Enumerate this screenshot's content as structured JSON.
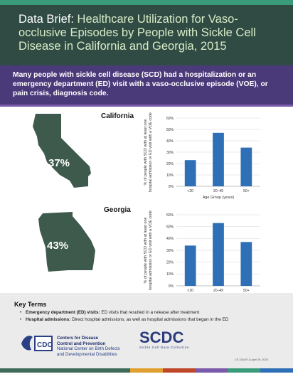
{
  "header": {
    "lead": "Data Brief:",
    "title": "Healthcare Utilization for Vaso-occlusive Episodes by People with Sickle Cell Disease in California and Georgia, 2015"
  },
  "banner": {
    "text": "Many people with sickle cell disease (SCD) had a hospitalization or an emergency department (ED) visit with a vaso-occlusive episode (VOE), or pain crisis, diagnosis code."
  },
  "states": [
    {
      "name": "California",
      "percent": "37%"
    },
    {
      "name": "Georgia",
      "percent": "43%"
    }
  ],
  "chart_data": [
    {
      "type": "bar",
      "title": "California",
      "categories": [
        "<20",
        "20–49",
        "50+"
      ],
      "values": [
        23,
        47,
        34
      ],
      "xlabel": "Age Group (years)",
      "ylabel": "% of people with SCD with at least one hospital admission or ED visit with a VOE code",
      "yticks": [
        "0%",
        "10%",
        "20%",
        "30%",
        "40%",
        "50%",
        "60%"
      ],
      "ylim": [
        0,
        60
      ],
      "color": "#2e6fb5"
    },
    {
      "type": "bar",
      "title": "Georgia",
      "categories": [
        "<20",
        "20–49",
        "50+"
      ],
      "values": [
        34,
        53,
        37
      ],
      "xlabel": "Age Group (years)",
      "ylabel": "% of people with SCD with at least one hospital admission or ED visit with a VOE code",
      "yticks": [
        "0%",
        "10%",
        "20%",
        "30%",
        "40%",
        "50%",
        "60%"
      ],
      "ylim": [
        0,
        60
      ],
      "color": "#2e6fb5"
    }
  ],
  "key_terms": {
    "title": "Key Terms",
    "items": [
      {
        "term": "Emergency department (ED) visits:",
        "definition": "ED visits that resulted in a release after treatment"
      },
      {
        "term": "Hospital admissions:",
        "definition": "Direct hospital admissions, as well as hospital admissions that began in the ED"
      }
    ]
  },
  "cdc": {
    "logo_text": "CDC",
    "line1": "Centers for Disease",
    "line2": "Control and Prevention",
    "line3": "National Center on Birth Defects",
    "line4": "and Developmental Disabilities"
  },
  "scdc": {
    "logo": "SCDC",
    "subtitle": "Sickle Cell Data Collection"
  },
  "code": "CS 316407-A    April 26, 2020",
  "colors": {
    "header_bg": "#2f4b43",
    "banner_bg": "#4b3a7a",
    "map_fill": "#3e5a4c",
    "bar": "#2e6fb5",
    "footer": [
      "#3e6b5a",
      "#3e6b5a",
      "#3e6b5a",
      "#3e6b5a",
      "#e0a030",
      "#c0462a",
      "#7a5aaa",
      "#3a9b7a",
      "#2e6fb5"
    ]
  }
}
